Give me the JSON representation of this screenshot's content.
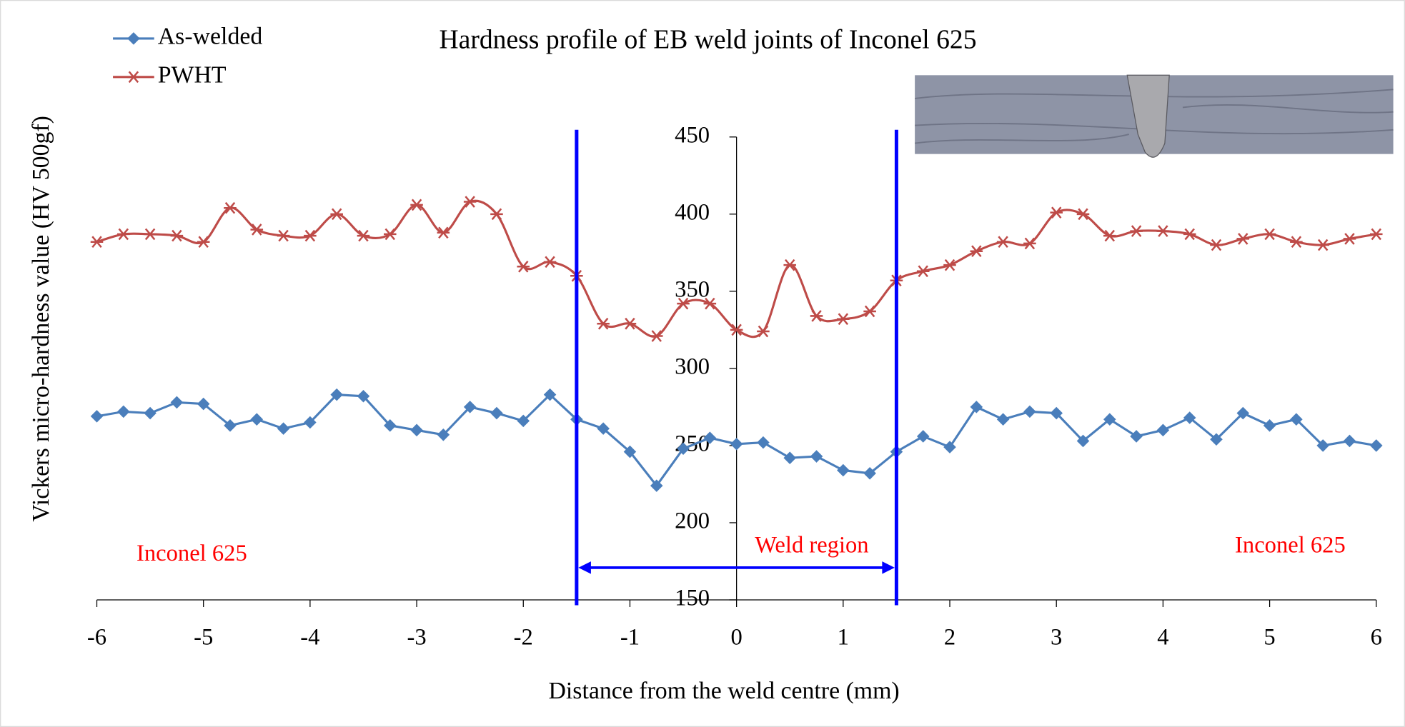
{
  "chart_data": {
    "type": "line",
    "title": "Hardness profile of EB weld joints of Inconel 625",
    "x_label": "Distance from the weld centre (mm)",
    "y_label": "Vickers micro-hardness value (HV 500gf)",
    "x": [
      -6,
      -5.75,
      -5.5,
      -5.25,
      -5,
      -4.75,
      -4.5,
      -4.25,
      -4,
      -3.75,
      -3.5,
      -3.25,
      -3,
      -2.75,
      -2.5,
      -2.25,
      -2,
      -1.75,
      -1.5,
      -1.25,
      -1,
      -0.75,
      -0.5,
      -0.25,
      0,
      0.25,
      0.5,
      0.75,
      1,
      1.25,
      1.5,
      1.75,
      2,
      2.25,
      2.5,
      2.75,
      3,
      3.25,
      3.5,
      3.75,
      4,
      4.25,
      4.5,
      4.75,
      5,
      5.25,
      5.5,
      5.75,
      6
    ],
    "series": [
      {
        "name": "As-welded",
        "color": "#4a7ebb",
        "marker": "diamond",
        "smooth": false,
        "values": [
          269,
          272,
          271,
          278,
          277,
          263,
          267,
          261,
          265,
          283,
          282,
          263,
          260,
          257,
          275,
          271,
          266,
          283,
          267,
          261,
          246,
          224,
          248,
          255,
          251,
          252,
          242,
          243,
          234,
          232,
          246,
          256,
          249,
          275,
          267,
          272,
          271,
          253,
          267,
          256,
          260,
          268,
          254,
          271,
          263,
          267,
          250,
          253,
          250
        ]
      },
      {
        "name": "PWHT",
        "color": "#be4b48",
        "marker": "asterisk",
        "smooth": true,
        "values": [
          382,
          387,
          387,
          386,
          382,
          404,
          390,
          386,
          386,
          400,
          386,
          387,
          406,
          388,
          408,
          400,
          366,
          369,
          360,
          329,
          329,
          321,
          342,
          342,
          325,
          324,
          367,
          334,
          332,
          337,
          357,
          363,
          367,
          376,
          382,
          381,
          401,
          400,
          386,
          389,
          389,
          387,
          380,
          384,
          387,
          382,
          380,
          384,
          387
        ]
      }
    ],
    "xlim": [
      -6,
      6
    ],
    "ylim": [
      150,
      450
    ],
    "xticks": [
      -6,
      -5,
      -4,
      -3,
      -2,
      -1,
      0,
      1,
      2,
      3,
      4,
      5,
      6
    ],
    "yticks": [
      150,
      200,
      250,
      300,
      350,
      400,
      450
    ],
    "weld_bounds": [
      -1.5,
      1.5
    ],
    "annotations": {
      "weld": "Weld region",
      "left": "Inconel 625",
      "right": "Inconel 625"
    },
    "legend": "upper left"
  }
}
